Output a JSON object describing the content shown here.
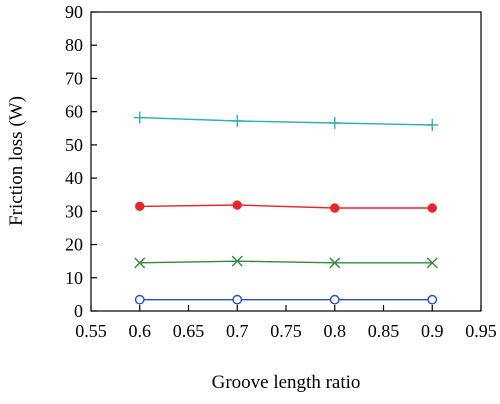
{
  "chart_data": {
    "type": "line",
    "title": "",
    "xlabel": "Groove length ratio",
    "ylabel": "Friction loss (W)",
    "xlim": [
      0.55,
      0.95
    ],
    "ylim": [
      0,
      90
    ],
    "xticks": [
      "0.55",
      "0.6",
      "0.65",
      "0.7",
      "0.75",
      "0.8",
      "0.85",
      "0.9",
      "0.95"
    ],
    "yticks": [
      "0",
      "10",
      "20",
      "30",
      "40",
      "50",
      "60",
      "70",
      "80",
      "90"
    ],
    "grid": false,
    "legend": "none",
    "x": [
      0.6,
      0.7,
      0.8,
      0.9
    ],
    "series": [
      {
        "marker": "plus",
        "color": "#2ab1b6",
        "values": [
          58.2,
          57.2,
          56.6,
          56.0
        ]
      },
      {
        "marker": "filled-circle",
        "color": "#e8262b",
        "values": [
          31.5,
          31.9,
          31.0,
          31.0
        ]
      },
      {
        "marker": "x",
        "color": "#2e8b3a",
        "values": [
          14.5,
          15.0,
          14.5,
          14.5
        ]
      },
      {
        "marker": "open-circle",
        "color": "#1f4fc4",
        "values": [
          3.4,
          3.4,
          3.4,
          3.4
        ]
      }
    ]
  }
}
